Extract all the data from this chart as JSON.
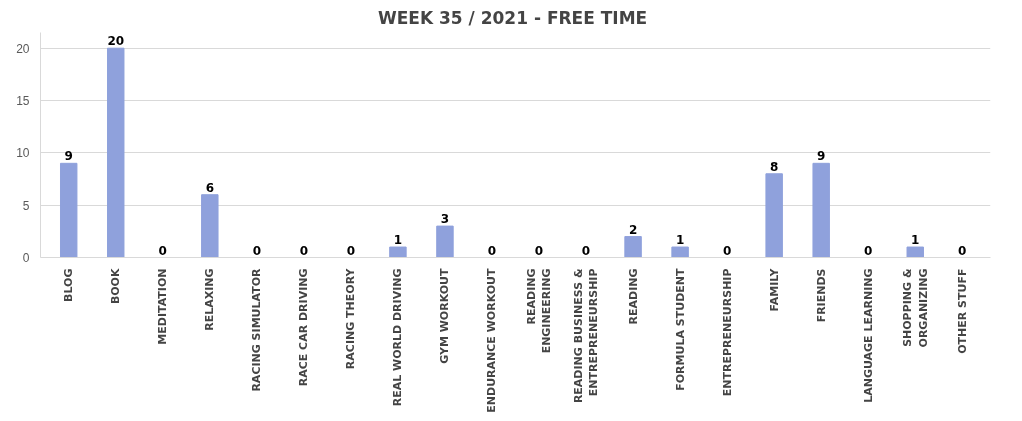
{
  "chart_data": {
    "type": "bar",
    "title": "WEEK 35  / 2021 - FREE TIME",
    "categories": [
      "BLOG",
      "BOOK",
      "MEDITATION",
      "RELAXING",
      "RACING SIMULATOR",
      "RACE CAR DRIVING",
      "RACING THEORY",
      "REAL WORLD DRIVING",
      "GYM WORKOUT",
      "ENDURANCE WORKOUT",
      "READING ENGINEERING",
      "READING BUSINESS & ENTREPRENEURSHIP",
      "READING",
      "FORMULA STUDENT",
      "ENTREPRENEURSHIP",
      "FAMILY",
      "FRIENDS",
      "LANGUAGE LEARNING",
      "SHOPPING & ORGANIZING",
      "OTHER STUFF"
    ],
    "values": [
      9,
      20,
      0,
      6,
      0,
      0,
      0,
      1,
      3,
      0,
      0,
      0,
      2,
      1,
      0,
      8,
      9,
      0,
      1,
      0
    ],
    "color": "#8fa1dc",
    "ylim": [
      0,
      21.5
    ],
    "yticks": [
      0,
      5,
      10,
      15,
      20
    ],
    "grid": "y",
    "data_labels": true
  }
}
